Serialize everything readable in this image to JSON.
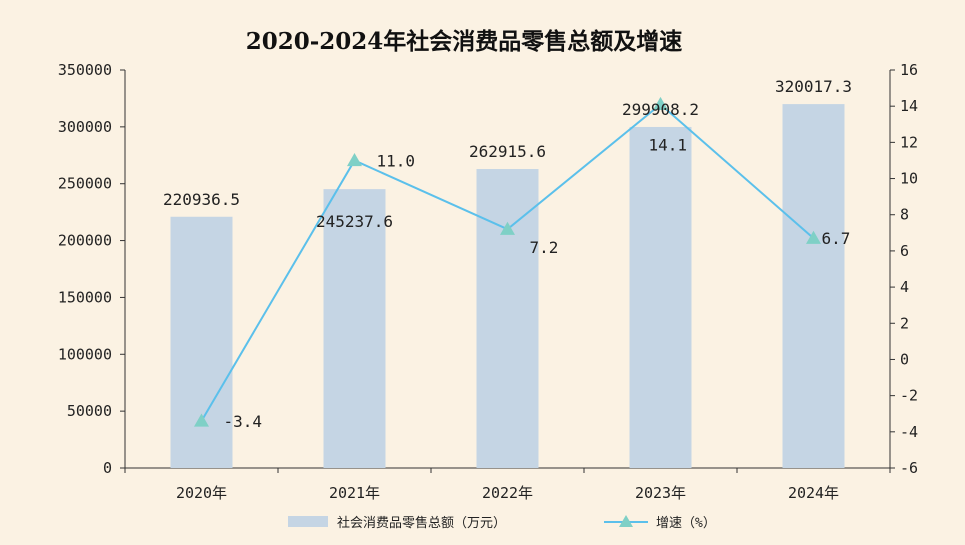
{
  "chart_data": {
    "type": "bar",
    "title": "2020-2024年社会消费品零售总额及增速",
    "categories": [
      "2020年",
      "2021年",
      "2022年",
      "2023年",
      "2024年"
    ],
    "series": [
      {
        "name": "社会消费品零售总额（万元）",
        "type": "bar",
        "axis": "left",
        "values": [
          220936.5,
          245237.6,
          262915.6,
          299908.2,
          320017.3
        ],
        "labels": [
          "220936.5",
          "245237.6",
          "262915.6",
          "299908.2",
          "320017.3"
        ],
        "color": "#c5d5e4"
      },
      {
        "name": "增速（%）",
        "type": "line",
        "axis": "right",
        "values": [
          -3.4,
          11.0,
          7.2,
          14.1,
          6.7
        ],
        "labels": [
          "-3.4",
          "11.0",
          "7.2",
          "14.1",
          "6.7"
        ],
        "color": "#5bc0eb",
        "marker_color": "#7fd0c6"
      }
    ],
    "y_left": {
      "lim": [
        0,
        350000
      ],
      "ticks": [
        0,
        50000,
        100000,
        150000,
        200000,
        250000,
        300000,
        350000
      ]
    },
    "y_right": {
      "lim": [
        -6,
        16
      ],
      "ticks": [
        -6,
        -4,
        -2,
        0,
        2,
        4,
        6,
        8,
        10,
        12,
        14,
        16
      ]
    },
    "grid": false,
    "legend": "bottom"
  }
}
